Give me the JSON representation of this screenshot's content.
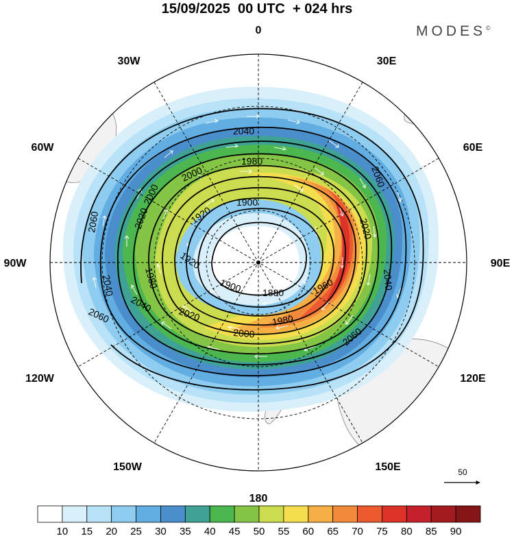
{
  "title": "15/09/2025  00 UTC  + 024 hrs",
  "brand": "MODES",
  "brand_mark": "©",
  "longitude_labels": {
    "n": "0",
    "e30": "30E",
    "e60": "60E",
    "e90": "90E",
    "e120": "120E",
    "e150": "150E",
    "s": "180",
    "w150": "150W",
    "w120": "120W",
    "w90": "90W",
    "w60": "60W",
    "w30": "30W"
  },
  "contour_labels": [
    "2040",
    "1980",
    "2000",
    "2060",
    "2000",
    "2020",
    "1900",
    "1920",
    "2060",
    "2040",
    "1980",
    "1920",
    "1900",
    "1880",
    "1960",
    "1980",
    "2000",
    "2020",
    "2040",
    "2060",
    "2040",
    "2020",
    "2060"
  ],
  "reference_vector": {
    "label": "50"
  },
  "colorbar": {
    "ticks": [
      "10",
      "15",
      "20",
      "25",
      "30",
      "35",
      "40",
      "45",
      "50",
      "55",
      "60",
      "65",
      "70",
      "75",
      "80",
      "85",
      "90"
    ],
    "colors": [
      "#ffffff",
      "#d9f0fb",
      "#b8e2f8",
      "#8fcdf0",
      "#62aee3",
      "#4a8fcb",
      "#3fa294",
      "#4cb64f",
      "#85c545",
      "#cbdc4e",
      "#f5de4d",
      "#f6af45",
      "#f28a3c",
      "#ec5a2e",
      "#dc3328",
      "#c4212a",
      "#a31a1f",
      "#841618"
    ]
  },
  "colors": {
    "land": "#f2f2f2",
    "coast": "#808080",
    "contour": "#000000",
    "vector": "#ffffff",
    "grid": "#000000"
  }
}
